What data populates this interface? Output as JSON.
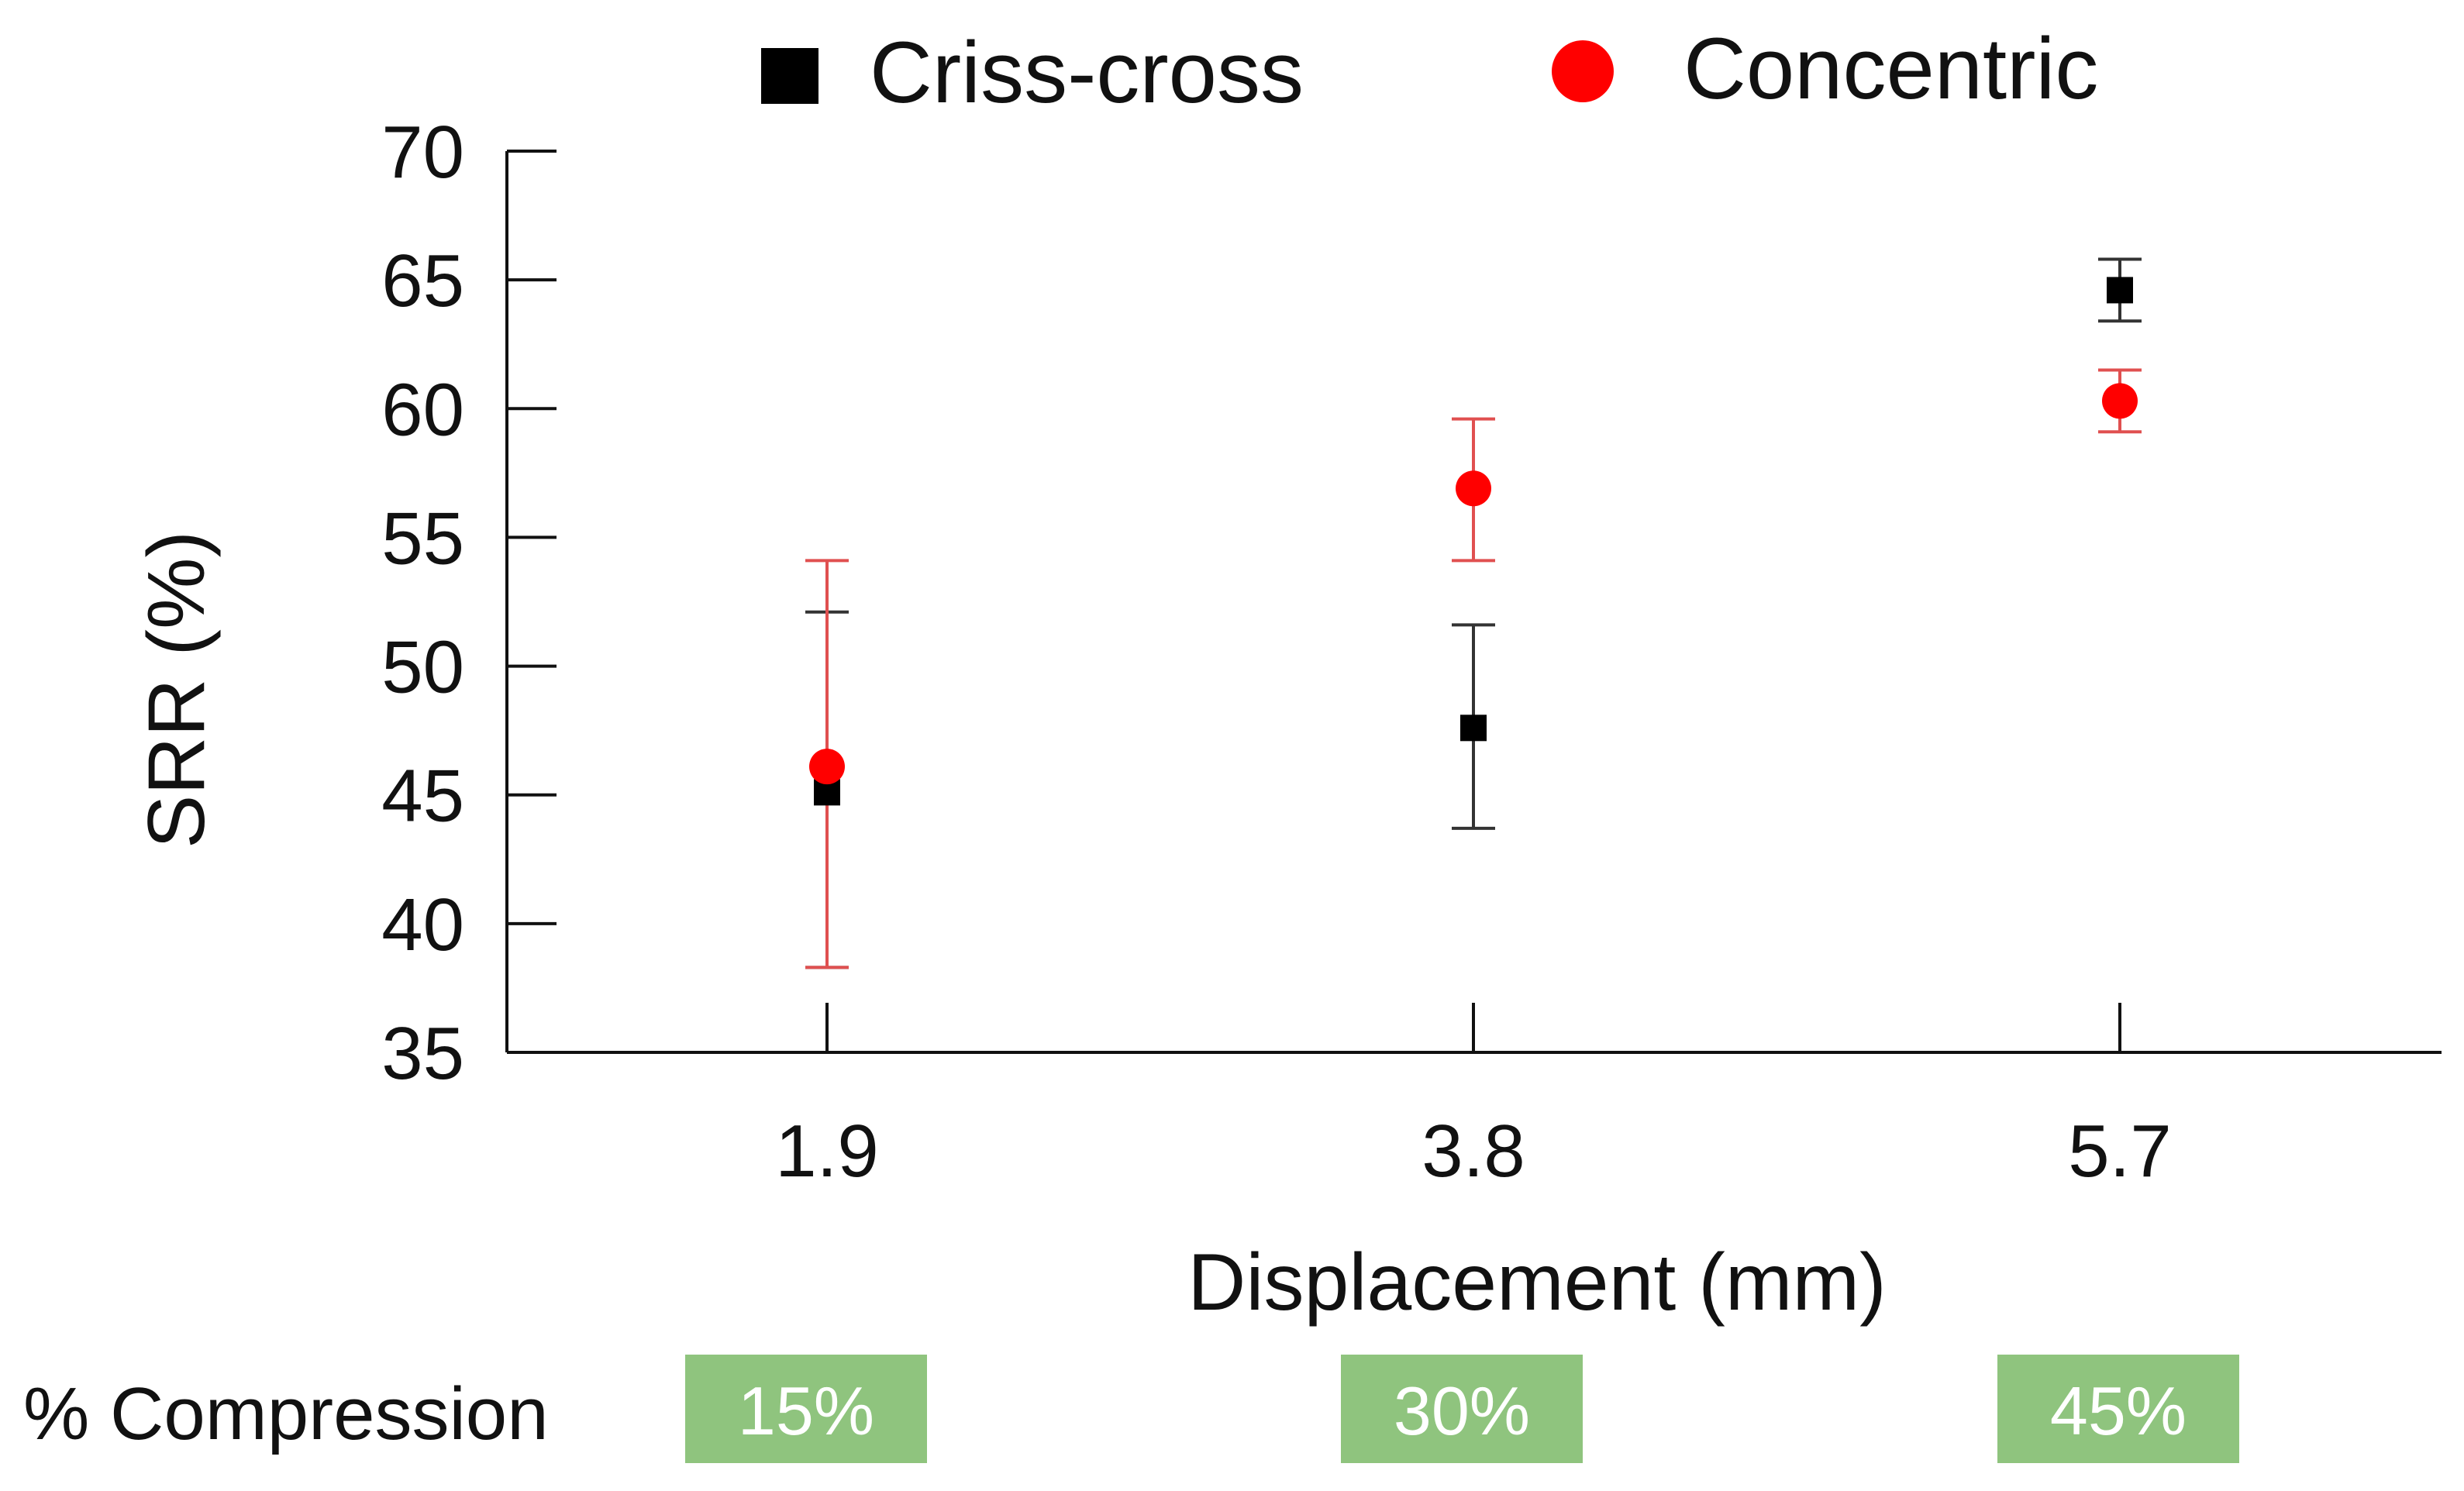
{
  "chart_data": {
    "type": "scatter",
    "title": "",
    "xlabel": "Displacement (mm)",
    "ylabel": "SRR (%)",
    "categories": [
      "1.9",
      "3.8",
      "5.7"
    ],
    "ylim": [
      35,
      70
    ],
    "yticks": [
      "35",
      "40",
      "45",
      "50",
      "55",
      "60",
      "65",
      "70"
    ],
    "legend_position": "top",
    "series": [
      {
        "name": "Criss-cross",
        "marker": "square",
        "color": "#000000",
        "error_color": "#333333",
        "values": [
          45.1,
          47.6,
          64.6
        ],
        "err_low": [
          38.3,
          43.7,
          63.4
        ],
        "err_high": [
          52.1,
          51.6,
          65.8
        ]
      },
      {
        "name": "Concentric",
        "marker": "circle",
        "color": "#ff0000",
        "error_color": "#e05050",
        "values": [
          46.1,
          56.9,
          60.3
        ],
        "err_low": [
          38.3,
          54.1,
          59.1
        ],
        "err_high": [
          54.1,
          59.6,
          61.5
        ]
      }
    ]
  },
  "compression": {
    "label": "% Compression",
    "values": [
      "15%",
      "30%",
      "45%"
    ],
    "box_color": "#8fc47e"
  }
}
